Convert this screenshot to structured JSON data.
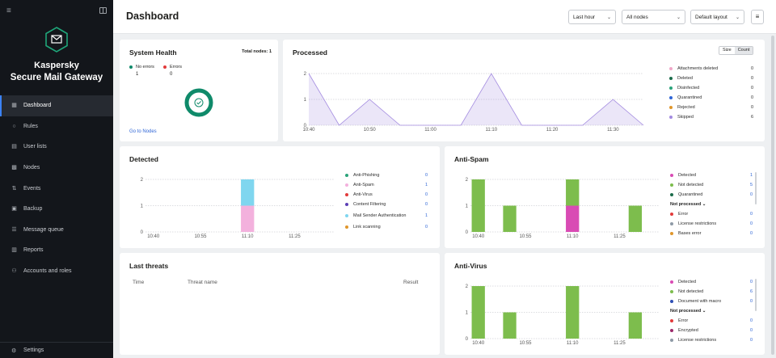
{
  "sidebar": {
    "product_line1": "Kaspersky",
    "product_line2": "Secure Mail Gateway",
    "items": [
      {
        "label": "Dashboard",
        "icon": "dashboard-icon",
        "active": true
      },
      {
        "label": "Rules",
        "icon": "rules-icon"
      },
      {
        "label": "User lists",
        "icon": "user-lists-icon"
      },
      {
        "label": "Nodes",
        "icon": "nodes-icon"
      },
      {
        "label": "Events",
        "icon": "events-icon"
      },
      {
        "label": "Backup",
        "icon": "backup-icon"
      },
      {
        "label": "Message queue",
        "icon": "message-queue-icon"
      },
      {
        "label": "Reports",
        "icon": "reports-icon"
      },
      {
        "label": "Accounts and roles",
        "icon": "accounts-icon"
      }
    ],
    "settings_label": "Settings"
  },
  "header": {
    "title": "Dashboard",
    "time_filter": "Last hour",
    "nodes_filter": "All nodes",
    "layout_filter": "Default layout"
  },
  "system_health": {
    "title": "System Health",
    "total_nodes_label": "Total nodes: 1",
    "no_errors_label": "No errors",
    "no_errors_value": "1",
    "errors_label": "Errors",
    "errors_value": "0",
    "link_label": "Go to Nodes",
    "colors": {
      "ok": "#0f8a6a",
      "error": "#e23a3a"
    }
  },
  "processed": {
    "title": "Processed",
    "toggle_size": "Size",
    "toggle_count": "Count",
    "chart_data": {
      "type": "area",
      "x": [
        "10:40",
        "10:45",
        "10:50",
        "10:55",
        "11:00",
        "11:05",
        "11:10",
        "11:15",
        "11:20",
        "11:25",
        "11:30",
        "11:35"
      ],
      "x_tick_labels": [
        "10:40",
        "10:50",
        "11:00",
        "11:10",
        "11:20",
        "11:30"
      ],
      "y_ticks": [
        "0",
        "1",
        "2"
      ],
      "ylim": [
        0,
        2
      ],
      "series": [
        {
          "name": "Skipped",
          "values": [
            2,
            0,
            1,
            0,
            0,
            0,
            2,
            0,
            0,
            0,
            1,
            0
          ]
        }
      ]
    },
    "legend": [
      {
        "label": "Attachments deleted",
        "value": "0",
        "color": "#f0a7c8"
      },
      {
        "label": "Deleted",
        "value": "0",
        "color": "#1a6b4a"
      },
      {
        "label": "Disinfected",
        "value": "0",
        "color": "#2aa37a"
      },
      {
        "label": "Quarantined",
        "value": "0",
        "color": "#2f66d6"
      },
      {
        "label": "Rejected",
        "value": "0",
        "color": "#e0962b"
      },
      {
        "label": "Skipped",
        "value": "6",
        "color": "#a38be0"
      }
    ]
  },
  "detected": {
    "title": "Detected",
    "chart_data": {
      "type": "bar",
      "x_tick_labels": [
        "10:40",
        "10:55",
        "11:10",
        "11:25"
      ],
      "y_ticks": [
        "0",
        "1",
        "2"
      ],
      "ylim": [
        0,
        2
      ],
      "bars": [
        {
          "time": "11:10",
          "stack": [
            {
              "name": "Anti-Spam",
              "value": 1
            },
            {
              "name": "Mail Sender Authentication",
              "value": 1
            }
          ]
        }
      ]
    },
    "legend": [
      {
        "label": "Anti-Phishing",
        "value": "0",
        "color": "#2aa37a"
      },
      {
        "label": "Anti-Spam",
        "value": "1",
        "color": "#f3b1dd"
      },
      {
        "label": "Anti-Virus",
        "value": "0",
        "color": "#e23a3a"
      },
      {
        "label": "Content Filtering",
        "value": "0",
        "color": "#5b3fb5"
      },
      {
        "label": "Mail Sender Authentication",
        "value": "1",
        "color": "#7fd6ef"
      },
      {
        "label": "Link scanning",
        "value": "0",
        "color": "#e0962b"
      }
    ]
  },
  "anti_spam": {
    "title": "Anti-Spam",
    "chart_data": {
      "type": "bar",
      "x_tick_labels": [
        "10:40",
        "10:55",
        "11:10",
        "11:25"
      ],
      "y_ticks": [
        "0",
        "1",
        "2"
      ],
      "ylim": [
        0,
        2
      ],
      "bars": [
        {
          "time": "10:40",
          "stack": [
            {
              "name": "Not detected",
              "value": 2
            }
          ]
        },
        {
          "time": "10:50",
          "stack": [
            {
              "name": "Not detected",
              "value": 1
            }
          ]
        },
        {
          "time": "11:10",
          "stack": [
            {
              "name": "Detected",
              "value": 1
            },
            {
              "name": "Not detected",
              "value": 1
            }
          ]
        },
        {
          "time": "11:30",
          "stack": [
            {
              "name": "Not detected",
              "value": 1
            }
          ]
        }
      ]
    },
    "legend": [
      {
        "label": "Detected",
        "value": "1",
        "color": "#d94bb4"
      },
      {
        "label": "Not detected",
        "value": "5",
        "color": "#7dbd4d"
      },
      {
        "label": "Quarantined",
        "value": "0",
        "color": "#1a6b4a"
      }
    ],
    "section_label": "Not processed",
    "legend2": [
      {
        "label": "Error",
        "value": "0",
        "color": "#e23a3a"
      },
      {
        "label": "License restrictions",
        "value": "0",
        "color": "#8e9aa6"
      },
      {
        "label": "Bases error",
        "value": "0",
        "color": "#e0962b"
      }
    ]
  },
  "last_threats": {
    "title": "Last threats",
    "col_time": "Time",
    "col_threat": "Threat name",
    "col_result": "Result"
  },
  "anti_virus": {
    "title": "Anti-Virus",
    "chart_data": {
      "type": "bar",
      "x_tick_labels": [
        "10:40",
        "10:55",
        "11:10",
        "11:25"
      ],
      "y_ticks": [
        "0",
        "1",
        "2"
      ],
      "ylim": [
        0,
        2
      ],
      "bars": [
        {
          "time": "10:40",
          "stack": [
            {
              "name": "Not detected",
              "value": 2
            }
          ]
        },
        {
          "time": "10:50",
          "stack": [
            {
              "name": "Not detected",
              "value": 1
            }
          ]
        },
        {
          "time": "11:10",
          "stack": [
            {
              "name": "Not detected",
              "value": 2
            }
          ]
        },
        {
          "time": "11:30",
          "stack": [
            {
              "name": "Not detected",
              "value": 1
            }
          ]
        }
      ]
    },
    "legend": [
      {
        "label": "Detected",
        "value": "0",
        "color": "#d94bb4"
      },
      {
        "label": "Not detected",
        "value": "6",
        "color": "#7dbd4d"
      },
      {
        "label": "Document with macro",
        "value": "0",
        "color": "#2f4fb5"
      }
    ],
    "section_label": "Not processed",
    "legend2": [
      {
        "label": "Error",
        "value": "0",
        "color": "#e23a3a"
      },
      {
        "label": "Encrypted",
        "value": "0",
        "color": "#9b2a6a"
      },
      {
        "label": "License restrictions",
        "value": "0",
        "color": "#8e9aa6"
      }
    ]
  }
}
